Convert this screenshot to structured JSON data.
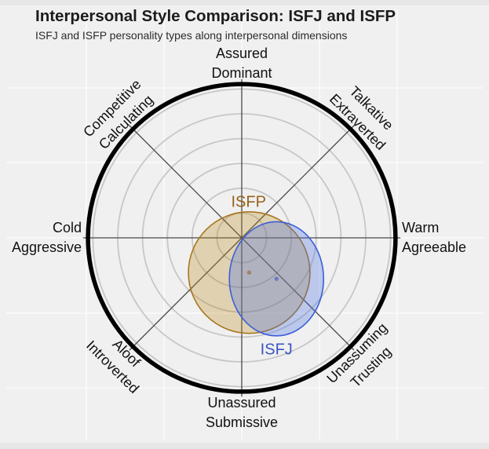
{
  "header": {
    "title": "Interpersonal Style Comparison: ISFJ and ISFP",
    "subtitle": "ISFJ and ISFP personality types along interpersonal dimensions"
  },
  "chart_data": {
    "type": "scatter",
    "subtype": "interpersonal-circumplex",
    "title": "Interpersonal Style Comparison: ISFJ and ISFP",
    "subtitle": "ISFJ and ISFP personality types along interpersonal dimensions",
    "axes": {
      "x_dimension": "Cold/Aggressive (-) to Warm/Agreeable (+)",
      "y_dimension": "Unassured/Submissive (-) to Assured/Dominant (+)",
      "xlim": [
        -1.25,
        1.25
      ],
      "ylim": [
        -1.25,
        1.25
      ],
      "grid_circle_radii": [
        0.2,
        0.4,
        0.6,
        0.8,
        1.0,
        1.2
      ],
      "boundary_radius": 1.24,
      "spoke_radius": 1.28,
      "spoke_angles_deg": [
        0,
        45,
        90,
        135
      ],
      "grid": "concentric circles + 8 radial spokes"
    },
    "octant_labels": [
      {
        "angle_deg": 90,
        "position": "top",
        "line1": "Assured",
        "line2": "Dominant"
      },
      {
        "angle_deg": 45,
        "position": "top-right",
        "line1": "Talkative",
        "line2": "Extraverted"
      },
      {
        "angle_deg": 0,
        "position": "right",
        "line1": "Warm",
        "line2": "Agreeable"
      },
      {
        "angle_deg": -45,
        "position": "bottom-right",
        "line1": "Unassuming",
        "line2": "Trusting"
      },
      {
        "angle_deg": -90,
        "position": "bottom",
        "line1": "Unassured",
        "line2": "Submissive"
      },
      {
        "angle_deg": -135,
        "position": "bottom-left",
        "line1": "Aloof",
        "line2": "Introverted"
      },
      {
        "angle_deg": 180,
        "position": "left",
        "line1": "Cold",
        "line2": "Aggressive"
      },
      {
        "angle_deg": 135,
        "position": "top-left",
        "line1": "Competitive",
        "line2": "Calculating"
      }
    ],
    "series": [
      {
        "name": "ISFP",
        "center": {
          "x": 0.06,
          "y": -0.28
        },
        "rx": 0.49,
        "ry": 0.49,
        "outline_color": "#a8761f",
        "fill_color": "#b8860b",
        "fill_opacity": 0.28,
        "dot_color": "#a08265",
        "label_color": "#98621c",
        "label_pos": {
          "x": 0.055,
          "y": 0.285
        }
      },
      {
        "name": "ISFJ",
        "center": {
          "x": 0.28,
          "y": -0.33
        },
        "rx": 0.38,
        "ry": 0.46,
        "outline_color": "#3c5ed8",
        "fill_color": "#4169e1",
        "fill_opacity": 0.3,
        "dot_color": "#6e78be",
        "label_color": "#3b55c0",
        "label_pos": {
          "x": 0.28,
          "y": -0.905
        }
      }
    ],
    "legend_position": "in-plot text labels"
  }
}
